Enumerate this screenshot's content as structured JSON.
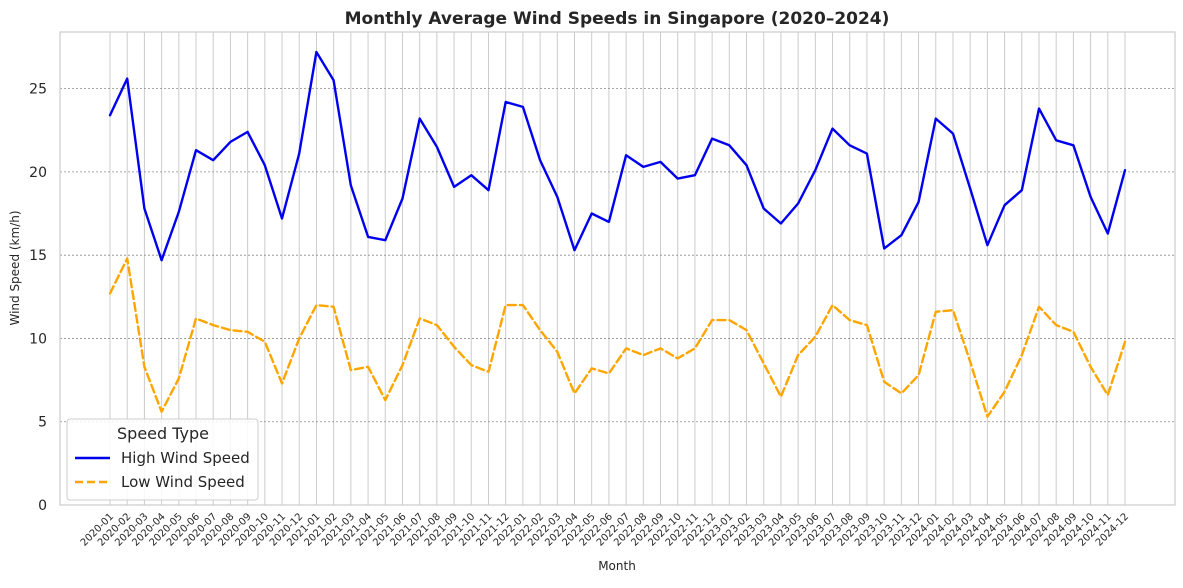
{
  "chart_data": {
    "type": "line",
    "title": "Monthly Average Wind Speeds in Singapore (2020–2024)",
    "xlabel": "Month",
    "ylabel": "Wind Speed (km/h)",
    "ylim": [
      0,
      28.4
    ],
    "yticks": [
      0,
      5,
      10,
      15,
      20,
      25
    ],
    "grid": true,
    "legend_placement": "lower-left",
    "legend_title": "Speed Type",
    "categories": [
      "2020-01",
      "2020-02",
      "2020-03",
      "2020-04",
      "2020-05",
      "2020-06",
      "2020-07",
      "2020-08",
      "2020-09",
      "2020-10",
      "2020-11",
      "2020-12",
      "2021-01",
      "2021-02",
      "2021-03",
      "2021-04",
      "2021-05",
      "2021-06",
      "2021-07",
      "2021-08",
      "2021-09",
      "2021-10",
      "2021-11",
      "2021-12",
      "2022-01",
      "2022-02",
      "2022-03",
      "2022-04",
      "2022-05",
      "2022-06",
      "2022-07",
      "2022-08",
      "2022-09",
      "2022-10",
      "2022-11",
      "2022-12",
      "2023-01",
      "2023-02",
      "2023-03",
      "2023-04",
      "2023-05",
      "2023-06",
      "2023-07",
      "2023-08",
      "2023-09",
      "2023-10",
      "2023-11",
      "2023-12",
      "2024-01",
      "2024-02",
      "2024-03",
      "2024-04",
      "2024-05",
      "2024-06",
      "2024-07",
      "2024-08",
      "2024-09",
      "2024-10",
      "2024-11",
      "2024-12"
    ],
    "series": [
      {
        "name": "High Wind Speed",
        "color": "#0000ee",
        "dash": "solid",
        "values": [
          23.4,
          25.6,
          17.8,
          14.7,
          17.6,
          21.3,
          20.7,
          21.8,
          22.4,
          20.4,
          17.2,
          21.1,
          27.2,
          25.5,
          19.2,
          16.1,
          15.9,
          18.4,
          23.2,
          21.5,
          19.1,
          19.8,
          18.9,
          24.2,
          23.9,
          20.7,
          18.5,
          15.3,
          17.5,
          17.0,
          21.0,
          20.3,
          20.6,
          19.6,
          19.8,
          22.0,
          21.6,
          20.4,
          17.8,
          16.9,
          18.1,
          20.1,
          22.6,
          21.6,
          21.1,
          15.4,
          16.2,
          18.2,
          23.2,
          22.3,
          19.0,
          15.6,
          18.0,
          18.9,
          23.8,
          21.9,
          21.6,
          18.5,
          16.3,
          20.1
        ]
      },
      {
        "name": "Low Wind Speed",
        "color": "#ffa500",
        "dash": "dashed",
        "values": [
          12.7,
          14.8,
          8.3,
          5.6,
          7.6,
          11.2,
          10.8,
          10.5,
          10.4,
          9.8,
          7.3,
          10.0,
          12.0,
          11.9,
          8.1,
          8.3,
          6.3,
          8.4,
          11.2,
          10.8,
          9.5,
          8.4,
          8.0,
          12.0,
          12.0,
          10.5,
          9.2,
          6.7,
          8.2,
          7.9,
          9.4,
          9.0,
          9.4,
          8.8,
          9.4,
          11.1,
          11.1,
          10.5,
          8.5,
          6.5,
          9.0,
          10.1,
          12.0,
          11.1,
          10.8,
          7.4,
          6.7,
          7.8,
          11.6,
          11.7,
          8.6,
          5.3,
          6.8,
          9.0,
          11.9,
          10.8,
          10.4,
          8.3,
          6.6,
          9.8
        ]
      }
    ]
  }
}
